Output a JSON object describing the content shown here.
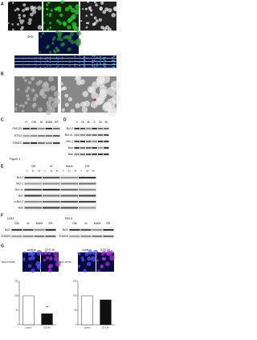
{
  "figure_label": "Figure 1",
  "panel_a": {
    "label": "A",
    "inset_label": "SH5"
  },
  "panel_b": {
    "label": "B"
  },
  "panel_c": {
    "label": "C",
    "lanes": [
      "H",
      "CM",
      "M",
      "MAM",
      "ER"
    ],
    "rows": [
      "GM130",
      "RTN3",
      "TOM20"
    ]
  },
  "panel_d": {
    "label": "D",
    "lanes": [
      "0",
      "2h",
      "4h",
      "0",
      "2h",
      "4h"
    ],
    "rows": [
      "Bcl-2",
      "Bcl-xL",
      "Mcl-1",
      "Bax",
      "Bak"
    ]
  },
  "panel_e": {
    "label": "E",
    "groups": [
      "CM",
      "M",
      "MAM",
      "ER"
    ],
    "lanes": [
      "0",
      "2h",
      "4h"
    ],
    "rows": [
      "Bcl-2",
      "Mcl-1",
      "Bcl-xL",
      "Bax",
      "p-Bcl-2",
      "Bak"
    ]
  },
  "panel_f": {
    "label": "F",
    "blots": [
      {
        "title": "U251",
        "groups": [
          "CM",
          "M",
          "MAM",
          "ER"
        ],
        "rows": [
          "Bcl2",
          "TOM20"
        ]
      },
      {
        "title": "PAC4",
        "groups": [
          "CM",
          "M",
          "MAM",
          "ER"
        ],
        "rows": [
          "Bcl2",
          "TOM20"
        ]
      }
    ]
  },
  "panel_g": {
    "label": "G",
    "images": [
      {
        "title": "Bcl2-TOM20",
        "conditions": [
          "control",
          "STS 4h"
        ]
      },
      {
        "title": "Bcl2-RTN3",
        "conditions": [
          "control",
          "STS 4h"
        ]
      }
    ],
    "charts": [
      {
        "type": "bar",
        "categories": [
          "control",
          "STS 4h"
        ],
        "values": [
          100,
          38
        ],
        "significance": "**",
        "ylim": [
          0,
          150
        ],
        "yticks": [
          0,
          50,
          100,
          150
        ]
      },
      {
        "type": "bar",
        "categories": [
          "control",
          "STS 4h"
        ],
        "values": [
          100,
          86
        ],
        "ylim": [
          0,
          150
        ],
        "yticks": [
          0,
          50,
          100,
          150
        ]
      }
    ]
  }
}
